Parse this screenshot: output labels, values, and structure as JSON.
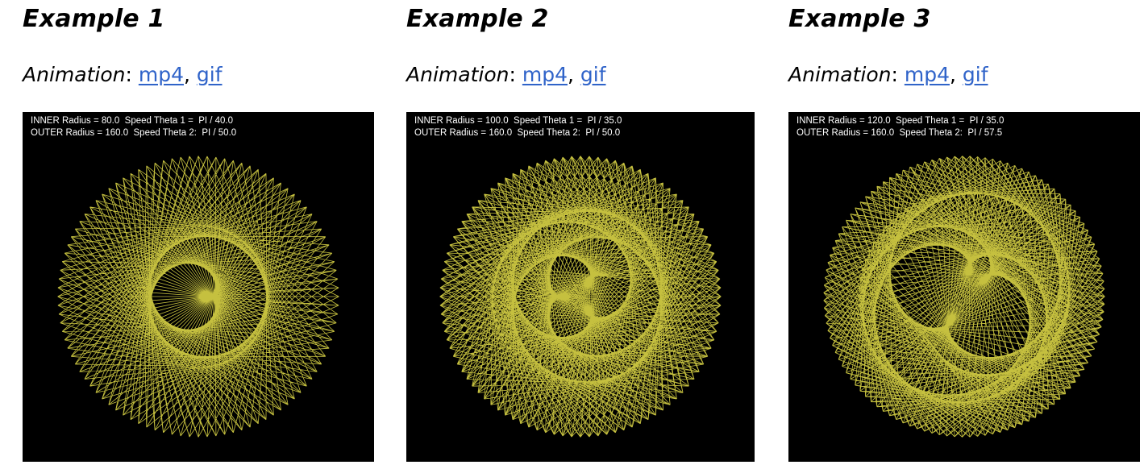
{
  "colors": {
    "pattern": "#e8e24a",
    "background": "#000000",
    "link": "#2f63c9",
    "caption": "#ffffff"
  },
  "examples": [
    {
      "title": "Example 1",
      "animation_label": "Animation",
      "colon": ": ",
      "sep": ", ",
      "links": [
        "mp4",
        "gif"
      ],
      "caption_line1": "INNER Radius = 80.0  Speed Theta 1 =  PI / 40.0",
      "caption_line2": "OUTER Radius = 160.0  Speed Theta 2:  PI / 50.0",
      "params": {
        "inner_radius": 80.0,
        "outer_radius": 160.0,
        "theta1_divisor": 40.0,
        "theta2_divisor": 50.0
      }
    },
    {
      "title": "Example 2",
      "animation_label": "Animation",
      "colon": ": ",
      "sep": ", ",
      "links": [
        "mp4",
        "gif"
      ],
      "caption_line1": "INNER Radius = 100.0  Speed Theta 1 =  PI / 35.0",
      "caption_line2": "OUTER Radius = 160.0  Speed Theta 2:  PI / 50.0",
      "params": {
        "inner_radius": 100.0,
        "outer_radius": 160.0,
        "theta1_divisor": 35.0,
        "theta2_divisor": 50.0
      }
    },
    {
      "title": "Example 3",
      "animation_label": "Animation",
      "colon": ": ",
      "sep": ", ",
      "links": [
        "mp4",
        "gif"
      ],
      "caption_line1": "INNER Radius = 120.0  Speed Theta 1 =  PI / 35.0",
      "caption_line2": "OUTER Radius = 160.0  Speed Theta 2:  PI / 57.5",
      "params": {
        "inner_radius": 120.0,
        "outer_radius": 160.0,
        "theta1_divisor": 35.0,
        "theta2_divisor": 57.5
      }
    }
  ]
}
